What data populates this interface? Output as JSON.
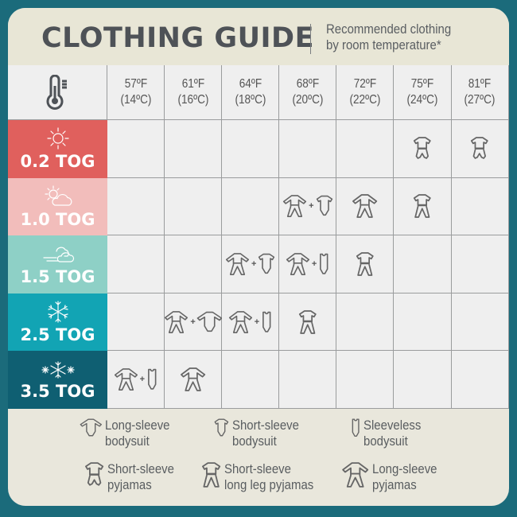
{
  "header": {
    "title": "CLOTHING GUIDE",
    "subtitle_line1": "Recommended clothing",
    "subtitle_line2": "by room temperature*"
  },
  "header_icon": "thermometer-icon",
  "temperatures": [
    {
      "f": "57ºF",
      "c": "(14ºC)"
    },
    {
      "f": "61ºF",
      "c": "(16ºC)"
    },
    {
      "f": "64ºF",
      "c": "(18ºC)"
    },
    {
      "f": "68ºF",
      "c": "(20ºC)"
    },
    {
      "f": "72ºF",
      "c": "(22ºC)"
    },
    {
      "f": "75ºF",
      "c": "(24ºC)"
    },
    {
      "f": "81ºF",
      "c": "(27ºC)"
    }
  ],
  "rows": [
    {
      "label": "0.2 TOG",
      "color": "#e0605d",
      "icon": "sun-icon",
      "cells": [
        [],
        [],
        [],
        [],
        [],
        [
          "ss-pyjamas"
        ],
        [
          "ss-pyjamas"
        ]
      ]
    },
    {
      "label": "1.0 TOG",
      "color": "#f2bdbb",
      "icon": "sun-cloud-icon",
      "cells": [
        [],
        [],
        [],
        [
          "ls-pyjamas",
          "ss-bodysuit"
        ],
        [
          "ls-pyjamas"
        ],
        [
          "ss-long-pyjamas"
        ],
        []
      ]
    },
    {
      "label": "1.5 TOG",
      "color": "#8ed0c6",
      "icon": "wind-cloud-icon",
      "cells": [
        [],
        [],
        [
          "ls-pyjamas",
          "ss-bodysuit"
        ],
        [
          "ls-pyjamas",
          "sleeveless-bodysuit"
        ],
        [
          "ss-long-pyjamas"
        ],
        [],
        []
      ]
    },
    {
      "label": "2.5 TOG",
      "color": "#12a4b4",
      "icon": "snowflake-icon",
      "cells": [
        [],
        [
          "ls-pyjamas",
          "ls-bodysuit"
        ],
        [
          "ls-pyjamas",
          "sleeveless-bodysuit"
        ],
        [
          "ss-long-pyjamas"
        ],
        [],
        [],
        []
      ]
    },
    {
      "label": "3.5 TOG",
      "color": "#0f5f72",
      "icon": "snowflakes-icon",
      "cells": [
        [
          "ls-pyjamas",
          "sleeveless-bodysuit"
        ],
        [
          "ls-pyjamas"
        ],
        [],
        [],
        [],
        [],
        []
      ]
    }
  ],
  "legend": [
    {
      "icon": "ls-bodysuit",
      "line1": "Long-sleeve",
      "line2": "bodysuit"
    },
    {
      "icon": "ss-bodysuit",
      "line1": "Short-sleeve",
      "line2": "bodysuit"
    },
    {
      "icon": "sleeveless-bodysuit",
      "line1": "Sleeveless",
      "line2": "bodysuit"
    },
    {
      "icon": "ss-pyjamas",
      "line1": "Short-sleeve",
      "line2": "pyjamas"
    },
    {
      "icon": "ss-long-pyjamas",
      "line1": "Short-sleeve",
      "line2": "long leg pyjamas"
    },
    {
      "icon": "ls-pyjamas",
      "line1": "Long-sleeve",
      "line2": "pyjamas"
    }
  ],
  "colors": {
    "frame": "#1b6b7b",
    "icon_stroke": "#666666"
  }
}
